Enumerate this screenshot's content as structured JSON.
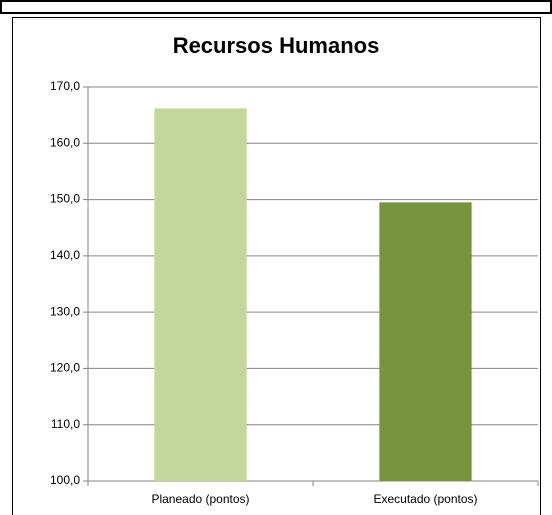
{
  "chart_data": {
    "type": "bar",
    "title": "Recursos Humanos",
    "categories": [
      "Planeado (pontos)",
      "Executado (pontos)"
    ],
    "values": [
      166.2,
      149.5
    ],
    "colors": [
      "#c4d79b",
      "#77933c"
    ],
    "ylim": [
      100,
      170
    ],
    "yticks": [
      {
        "value": 100,
        "label": "100,0"
      },
      {
        "value": 110,
        "label": "110,0"
      },
      {
        "value": 120,
        "label": "120,0"
      },
      {
        "value": 130,
        "label": "130,0"
      },
      {
        "value": 140,
        "label": "140,0"
      },
      {
        "value": 150,
        "label": "150,0"
      },
      {
        "value": 160,
        "label": "160,0"
      },
      {
        "value": 170,
        "label": "170,0"
      }
    ],
    "grid": true
  }
}
